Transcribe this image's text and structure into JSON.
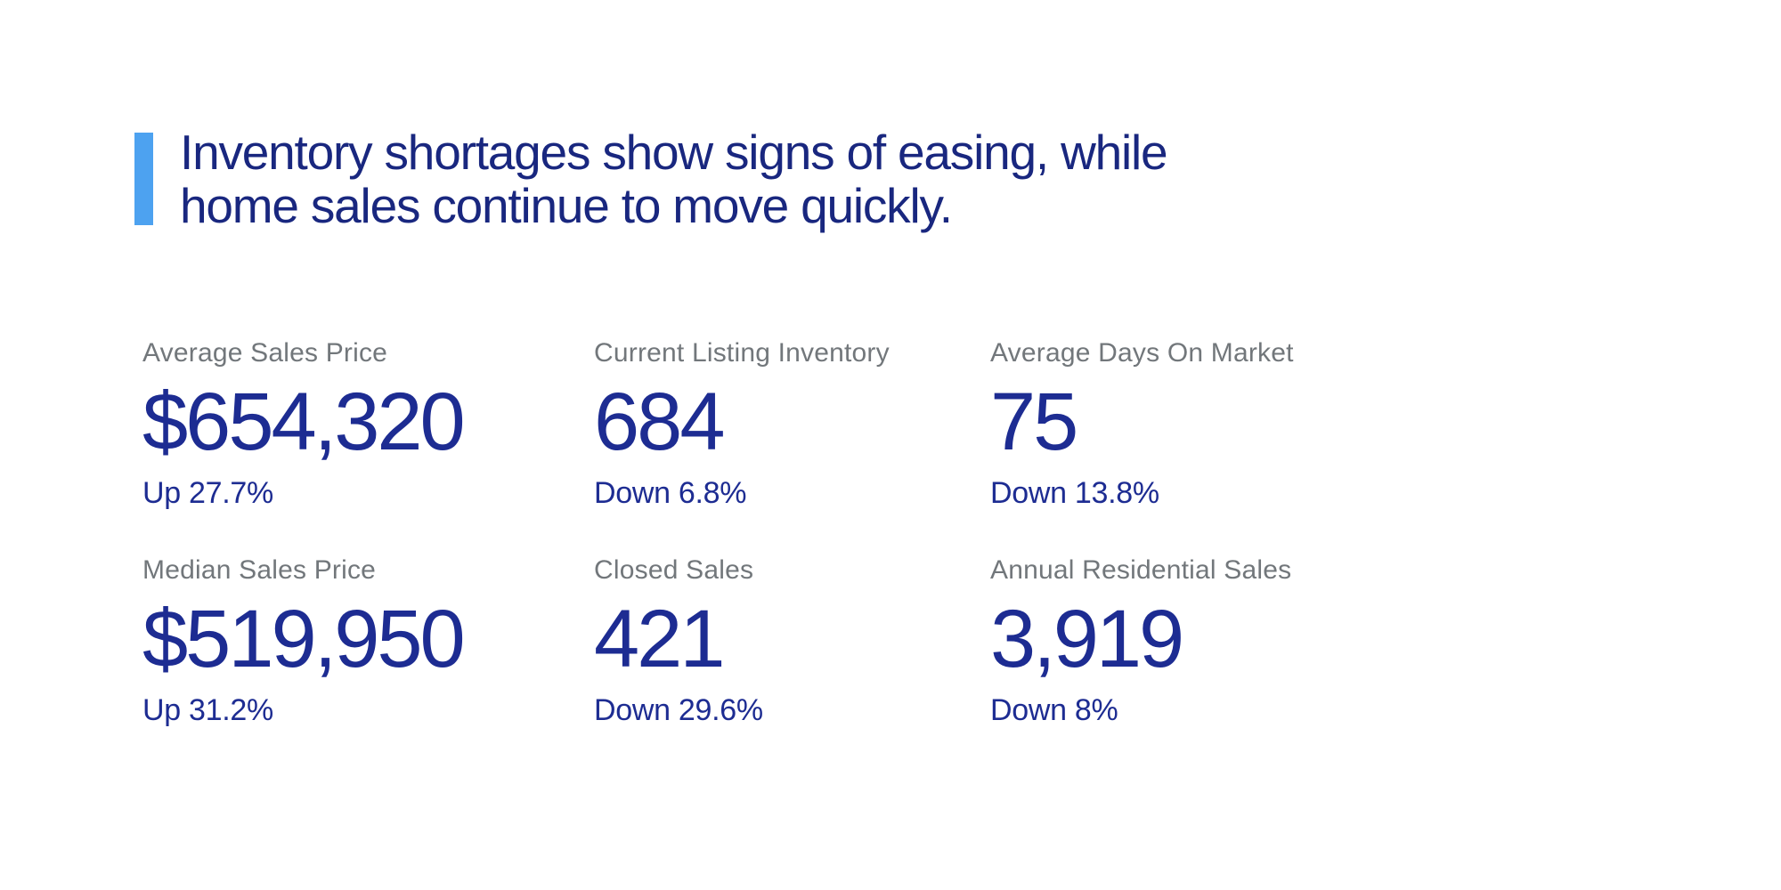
{
  "page": {
    "background_color": "#ffffff"
  },
  "headline": {
    "line1": "Inventory shortages show signs of easing, while",
    "line2": "home sales continue to move quickly.",
    "accent_color": "#4da2f0",
    "text_color": "#19277f"
  },
  "stats": {
    "label_color": "#72777b",
    "value_color": "#1d2c92",
    "items": [
      {
        "label": "Average Sales Price",
        "value": "$654,320",
        "delta": "Up 27.7%"
      },
      {
        "label": "Current Listing Inventory",
        "value": "684",
        "delta": "Down 6.8%"
      },
      {
        "label": "Average Days On Market",
        "value": "75",
        "delta": "Down 13.8%"
      },
      {
        "label": "Median Sales Price",
        "value": "$519,950",
        "delta": "Up 31.2%"
      },
      {
        "label": "Closed Sales",
        "value": "421",
        "delta": "Down 29.6%"
      },
      {
        "label": "Annual Residential Sales",
        "value": "3,919",
        "delta": "Down 8%"
      }
    ]
  }
}
